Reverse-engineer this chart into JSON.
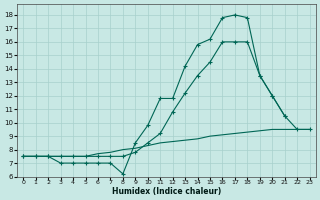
{
  "bg_color": "#c8e8e4",
  "grid_color": "#a8d0cc",
  "line_color": "#006655",
  "xlabel": "Humidex (Indice chaleur)",
  "xlim": [
    -0.5,
    23.5
  ],
  "ylim": [
    6,
    18.8
  ],
  "yticks": [
    6,
    7,
    8,
    9,
    10,
    11,
    12,
    13,
    14,
    15,
    16,
    17,
    18
  ],
  "xticks": [
    0,
    1,
    2,
    3,
    4,
    5,
    6,
    7,
    8,
    9,
    10,
    11,
    12,
    13,
    14,
    15,
    16,
    17,
    18,
    19,
    20,
    21,
    22,
    23
  ],
  "series1_x": [
    0,
    1,
    2,
    3,
    4,
    5,
    6,
    7,
    8,
    9,
    10,
    11,
    12,
    13,
    14,
    15,
    16,
    17,
    18,
    19,
    20,
    21,
    22,
    23
  ],
  "series1_y": [
    7.5,
    7.5,
    7.5,
    7.5,
    7.5,
    7.5,
    7.7,
    7.8,
    8.0,
    8.1,
    8.3,
    8.5,
    8.6,
    8.7,
    8.8,
    9.0,
    9.1,
    9.2,
    9.3,
    9.4,
    9.5,
    9.5,
    9.5,
    9.5
  ],
  "series2_x": [
    0,
    1,
    2,
    3,
    4,
    5,
    6,
    7,
    8,
    9,
    10,
    11,
    12,
    13,
    14,
    15,
    16,
    17,
    18,
    19,
    20,
    21,
    22,
    23
  ],
  "series2_y": [
    7.5,
    7.5,
    7.5,
    7.0,
    7.0,
    7.0,
    7.0,
    7.0,
    6.2,
    8.5,
    9.8,
    11.8,
    11.8,
    14.2,
    15.8,
    16.2,
    17.8,
    18.0,
    17.8,
    13.5,
    12.0,
    10.5,
    null,
    null
  ],
  "series3_x": [
    0,
    1,
    2,
    3,
    4,
    5,
    6,
    7,
    8,
    9,
    10,
    11,
    12,
    13,
    14,
    15,
    16,
    17,
    18,
    19,
    20,
    21,
    22,
    23
  ],
  "series3_y": [
    7.5,
    7.5,
    7.5,
    7.5,
    7.5,
    7.5,
    7.5,
    7.5,
    7.5,
    7.8,
    8.5,
    9.2,
    10.8,
    12.2,
    13.5,
    14.5,
    16.0,
    16.0,
    16.0,
    13.5,
    12.0,
    10.5,
    9.5,
    9.5
  ]
}
